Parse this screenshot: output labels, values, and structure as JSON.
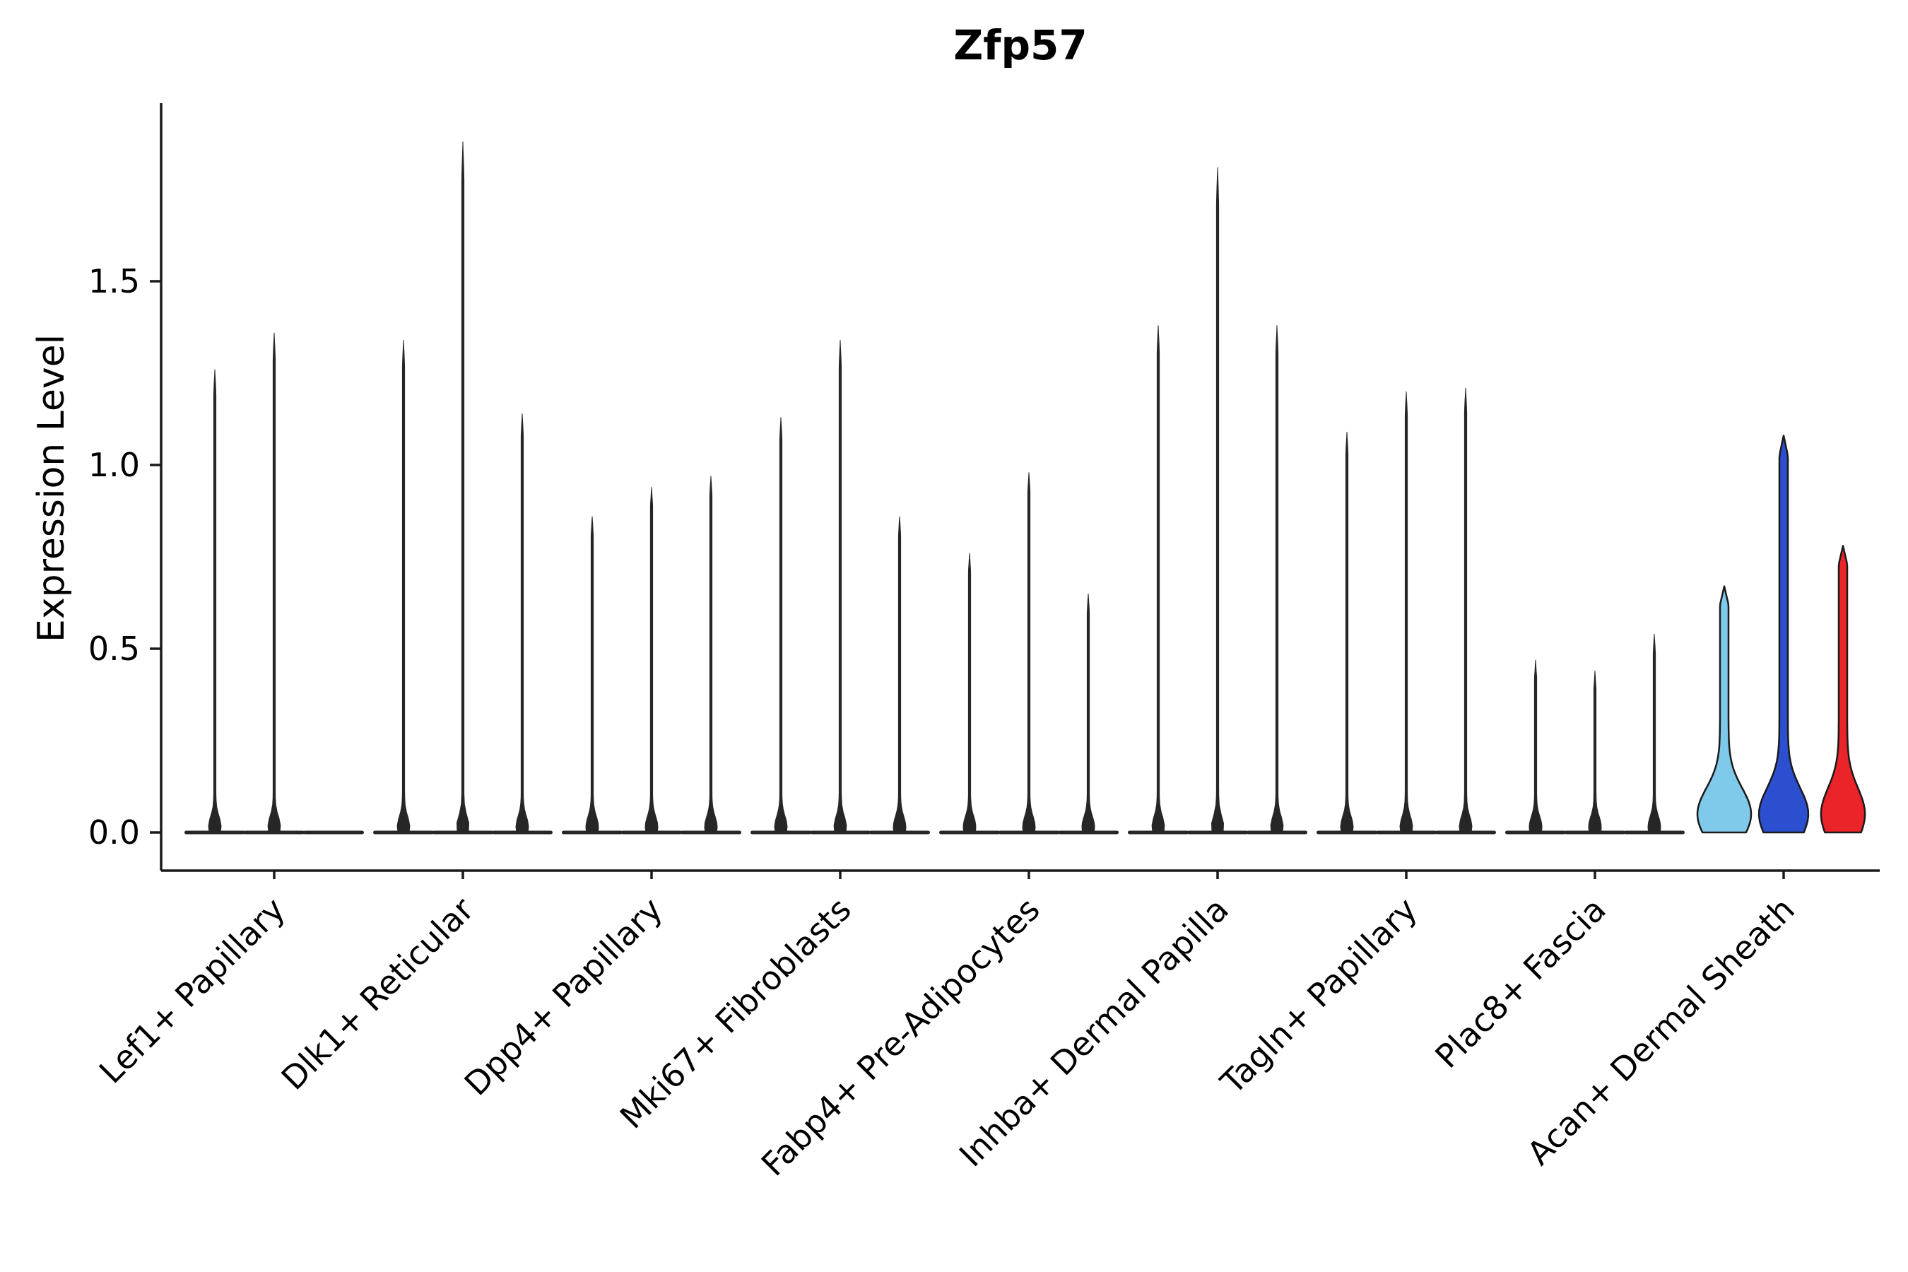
{
  "chart_data": {
    "type": "violin",
    "title": "Zfp57",
    "ylabel": "Expression Level",
    "xlabel": "",
    "yticks": [
      0.0,
      0.5,
      1.0,
      1.5
    ],
    "ylim": [
      -0.05,
      1.98
    ],
    "grid": false,
    "legend_position": "none",
    "axis_color": "#1a1a1a",
    "spike_color": "#262626",
    "categories": [
      "Lef1+ Papillary",
      "Dlk1+ Reticular",
      "Dpp4+ Papillary",
      "Mki67+ Fibroblasts",
      "Fabp4+ Pre-Adipocytes",
      "Inhba+ Dermal Papilla",
      "Tagln+ Papillary",
      "Plac8+ Fascia",
      "Acan+ Dermal Sheath"
    ],
    "groups": [
      {
        "category": "Lef1+ Papillary",
        "violins": [
          {
            "max": 1.26,
            "style": "spike",
            "color": "#262626",
            "bulge": 1
          },
          {
            "max": 1.36,
            "style": "spike",
            "color": "#262626",
            "bulge": 1
          },
          {
            "max": 0.0,
            "style": "spike",
            "color": "#262626",
            "bulge": 1
          }
        ]
      },
      {
        "category": "Dlk1+ Reticular",
        "violins": [
          {
            "max": 1.34,
            "style": "spike",
            "color": "#262626",
            "bulge": 1
          },
          {
            "max": 1.88,
            "style": "spike",
            "color": "#262626",
            "bulge": 1
          },
          {
            "max": 1.14,
            "style": "spike",
            "color": "#262626",
            "bulge": 1
          }
        ]
      },
      {
        "category": "Dpp4+ Papillary",
        "violins": [
          {
            "max": 0.86,
            "style": "spike",
            "color": "#262626",
            "bulge": 1
          },
          {
            "max": 0.94,
            "style": "spike",
            "color": "#262626",
            "bulge": 1
          },
          {
            "max": 0.97,
            "style": "spike",
            "color": "#262626",
            "bulge": 1
          }
        ]
      },
      {
        "category": "Mki67+ Fibroblasts",
        "violins": [
          {
            "max": 1.13,
            "style": "spike",
            "color": "#262626",
            "bulge": 1
          },
          {
            "max": 1.34,
            "style": "spike",
            "color": "#262626",
            "bulge": 1
          },
          {
            "max": 0.86,
            "style": "spike",
            "color": "#262626",
            "bulge": 1
          }
        ]
      },
      {
        "category": "Fabp4+ Pre-Adipocytes",
        "violins": [
          {
            "max": 0.76,
            "style": "spike",
            "color": "#262626",
            "bulge": 1
          },
          {
            "max": 0.98,
            "style": "spike",
            "color": "#262626",
            "bulge": 1
          },
          {
            "max": 0.65,
            "style": "spike",
            "color": "#262626",
            "bulge": 1
          }
        ]
      },
      {
        "category": "Inhba+ Dermal Papilla",
        "violins": [
          {
            "max": 1.38,
            "style": "spike",
            "color": "#262626",
            "bulge": 1
          },
          {
            "max": 1.81,
            "style": "spike",
            "color": "#262626",
            "bulge": 1
          },
          {
            "max": 1.38,
            "style": "spike",
            "color": "#262626",
            "bulge": 1
          }
        ]
      },
      {
        "category": "Tagln+ Papillary",
        "violins": [
          {
            "max": 1.09,
            "style": "spike",
            "color": "#262626",
            "bulge": 1
          },
          {
            "max": 1.2,
            "style": "spike",
            "color": "#262626",
            "bulge": 1
          },
          {
            "max": 1.21,
            "style": "spike",
            "color": "#262626",
            "bulge": 1
          }
        ]
      },
      {
        "category": "Plac8+ Fascia",
        "violins": [
          {
            "max": 0.47,
            "style": "spike",
            "color": "#262626",
            "bulge": 1
          },
          {
            "max": 0.44,
            "style": "spike",
            "color": "#262626",
            "bulge": 1
          },
          {
            "max": 0.54,
            "style": "spike",
            "color": "#262626",
            "bulge": 1
          }
        ]
      },
      {
        "category": "Acan+ Dermal Sheath",
        "violins": [
          {
            "max": 0.67,
            "style": "violin",
            "color": "#7FC9EA",
            "bulge": 1.0
          },
          {
            "max": 1.08,
            "style": "violin",
            "color": "#2C4FD0",
            "bulge": 0.92
          },
          {
            "max": 0.78,
            "style": "violin",
            "color": "#EA2428",
            "bulge": 0.82
          }
        ]
      }
    ]
  }
}
